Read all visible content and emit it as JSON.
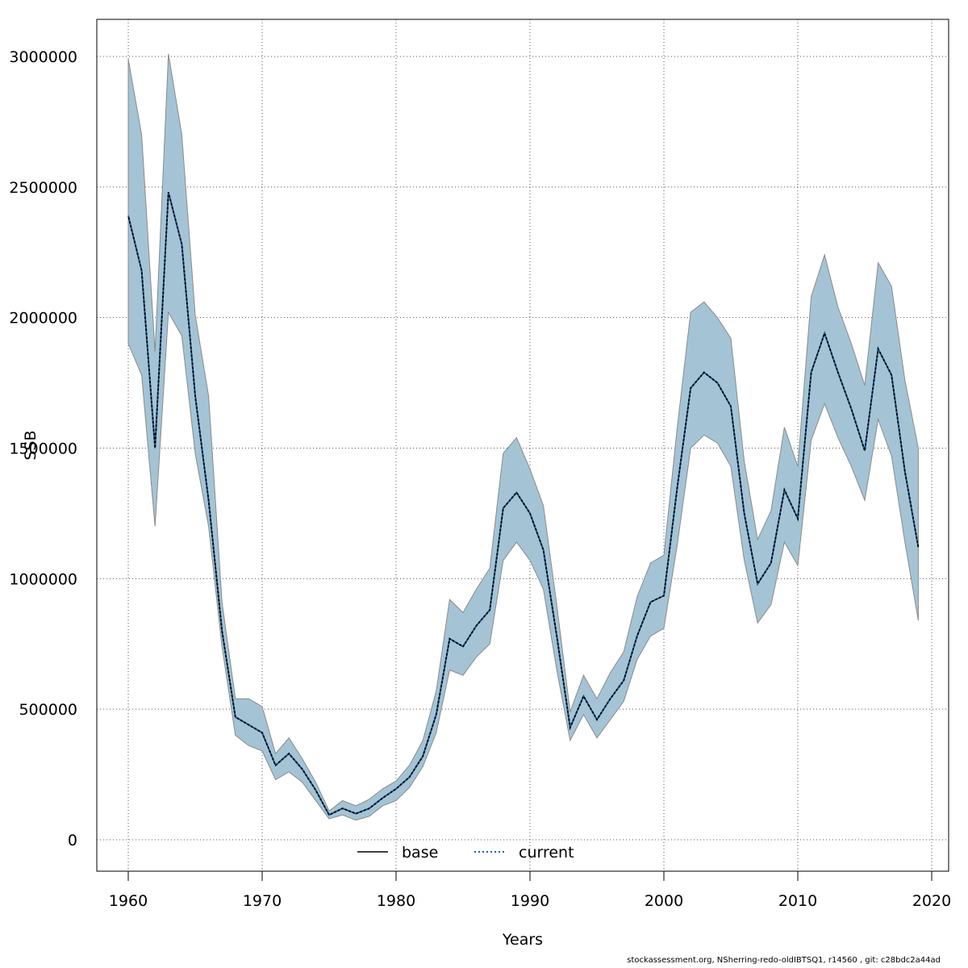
{
  "footer": "stockassessment.org, NSherring-redo-oldIBTSQ1, r14560 , git: c28bdc2a44ad",
  "colors": {
    "band_fill": "#a4c4d5",
    "band_edge": "#8a8a8a",
    "base_line": "#000000",
    "current_line": "#1a5fa0",
    "grid": "#555555"
  },
  "chart_data": {
    "type": "line",
    "title": "",
    "xlabel": "Years",
    "ylabel": "SSB",
    "xlim": [
      1960,
      2020
    ],
    "ylim": [
      0,
      3000000
    ],
    "grid": true,
    "legend_position": "bottom-center",
    "x_ticks": [
      1960,
      1970,
      1980,
      1990,
      2000,
      2010,
      2020
    ],
    "y_ticks": [
      0,
      500000,
      1000000,
      1500000,
      2000000,
      2500000,
      3000000
    ],
    "x_tick_labels": [
      "1960",
      "1970",
      "1980",
      "1990",
      "2000",
      "2010",
      "2020"
    ],
    "y_tick_labels": [
      "0",
      "500000",
      "1000000",
      "1500000",
      "2000000",
      "2500000",
      "3000000"
    ],
    "legend": [
      {
        "name": "base",
        "style": "solid"
      },
      {
        "name": "current",
        "style": "dotted"
      }
    ],
    "x": [
      1960,
      1961,
      1962,
      1963,
      1964,
      1965,
      1966,
      1967,
      1968,
      1969,
      1970,
      1971,
      1972,
      1973,
      1974,
      1975,
      1976,
      1977,
      1978,
      1979,
      1980,
      1981,
      1982,
      1983,
      1984,
      1985,
      1986,
      1987,
      1988,
      1989,
      1990,
      1991,
      1992,
      1993,
      1994,
      1995,
      1996,
      1997,
      1998,
      1999,
      2000,
      2001,
      2002,
      2003,
      2004,
      2005,
      2006,
      2007,
      2008,
      2009,
      2010,
      2011,
      2012,
      2013,
      2014,
      2015,
      2016,
      2017,
      2018,
      2019
    ],
    "series": [
      {
        "name": "base",
        "values": [
          2390000,
          2180000,
          1500000,
          2480000,
          2280000,
          1700000,
          1300000,
          800000,
          470000,
          440000,
          410000,
          285000,
          330000,
          270000,
          190000,
          95000,
          120000,
          100000,
          120000,
          160000,
          195000,
          240000,
          320000,
          480000,
          770000,
          740000,
          820000,
          880000,
          1270000,
          1330000,
          1250000,
          1110000,
          780000,
          430000,
          550000,
          460000,
          540000,
          610000,
          780000,
          910000,
          935000,
          1350000,
          1730000,
          1790000,
          1750000,
          1660000,
          1250000,
          980000,
          1060000,
          1340000,
          1230000,
          1790000,
          1940000,
          1790000,
          1650000,
          1490000,
          1880000,
          1780000,
          1410000,
          1120000
        ]
      },
      {
        "name": "current",
        "values": [
          2390000,
          2180000,
          1500000,
          2480000,
          2280000,
          1700000,
          1300000,
          800000,
          470000,
          440000,
          410000,
          285000,
          330000,
          270000,
          190000,
          95000,
          120000,
          100000,
          120000,
          160000,
          195000,
          240000,
          320000,
          480000,
          770000,
          740000,
          820000,
          880000,
          1270000,
          1330000,
          1250000,
          1110000,
          780000,
          430000,
          550000,
          460000,
          540000,
          610000,
          780000,
          910000,
          935000,
          1350000,
          1730000,
          1790000,
          1750000,
          1660000,
          1250000,
          980000,
          1060000,
          1340000,
          1230000,
          1790000,
          1940000,
          1790000,
          1650000,
          1490000,
          1880000,
          1780000,
          1410000,
          1120000
        ]
      }
    ],
    "confidence_band": {
      "lower": [
        1900000,
        1780000,
        1200000,
        2020000,
        1930000,
        1480000,
        1200000,
        740000,
        400000,
        360000,
        340000,
        230000,
        260000,
        220000,
        150000,
        80000,
        95000,
        75000,
        90000,
        130000,
        150000,
        200000,
        280000,
        410000,
        650000,
        630000,
        700000,
        750000,
        1070000,
        1140000,
        1070000,
        960000,
        650000,
        380000,
        480000,
        390000,
        460000,
        530000,
        690000,
        780000,
        810000,
        1130000,
        1500000,
        1550000,
        1520000,
        1430000,
        1070000,
        830000,
        900000,
        1140000,
        1050000,
        1530000,
        1670000,
        1540000,
        1430000,
        1300000,
        1610000,
        1470000,
        1140000,
        840000
      ],
      "upper": [
        2990000,
        2700000,
        1870000,
        3010000,
        2700000,
        2010000,
        1700000,
        910000,
        540000,
        540000,
        510000,
        330000,
        390000,
        310000,
        220000,
        110000,
        150000,
        130000,
        155000,
        195000,
        225000,
        285000,
        380000,
        570000,
        920000,
        870000,
        960000,
        1040000,
        1480000,
        1540000,
        1420000,
        1280000,
        900000,
        490000,
        630000,
        540000,
        640000,
        720000,
        930000,
        1060000,
        1090000,
        1580000,
        2020000,
        2060000,
        2000000,
        1920000,
        1450000,
        1150000,
        1260000,
        1580000,
        1430000,
        2080000,
        2240000,
        2040000,
        1900000,
        1740000,
        2210000,
        2120000,
        1760000,
        1500000
      ]
    }
  }
}
